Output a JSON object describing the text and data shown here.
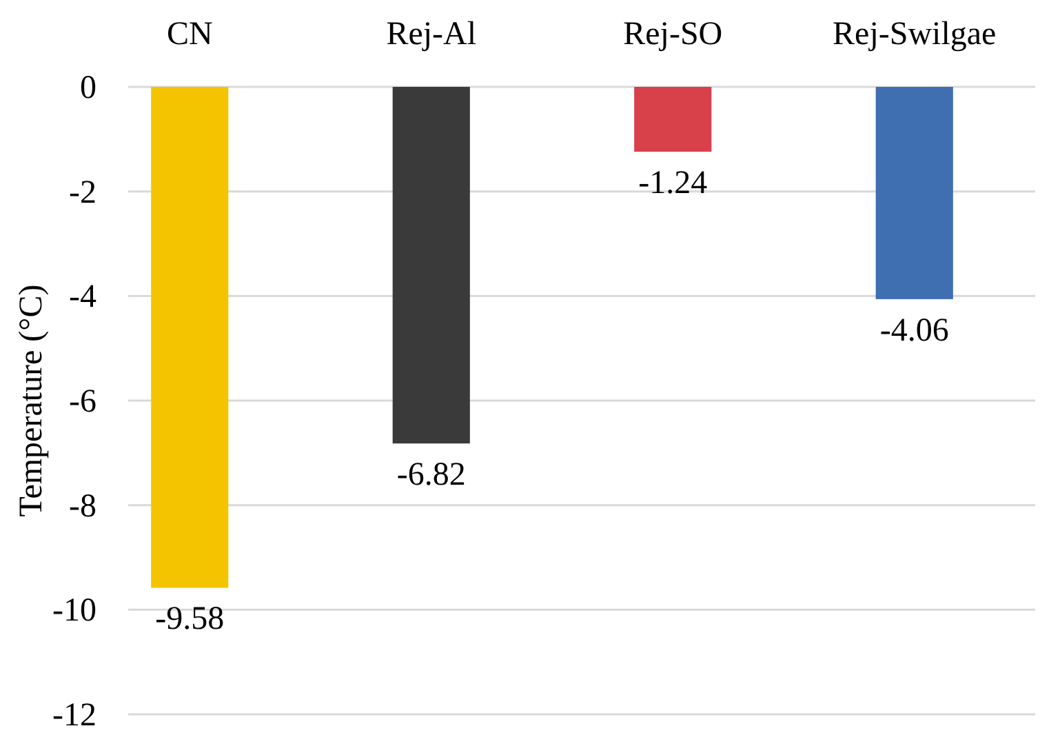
{
  "chart_data": {
    "type": "bar",
    "ylabel": "Temperature (°C)",
    "categories": [
      "CN",
      "Rej-Al",
      "Rej-SO",
      "Rej-Swilgae"
    ],
    "values": [
      -9.58,
      -6.82,
      -1.24,
      -4.06
    ],
    "colors": [
      "#f5c400",
      "#3a3a3a",
      "#d8404a",
      "#3f6fb0"
    ],
    "ylim": [
      -12,
      0
    ],
    "yticks": [
      -12,
      -10,
      -8,
      -6,
      -4,
      -2,
      0
    ],
    "grid": "y",
    "data_labels": true
  }
}
